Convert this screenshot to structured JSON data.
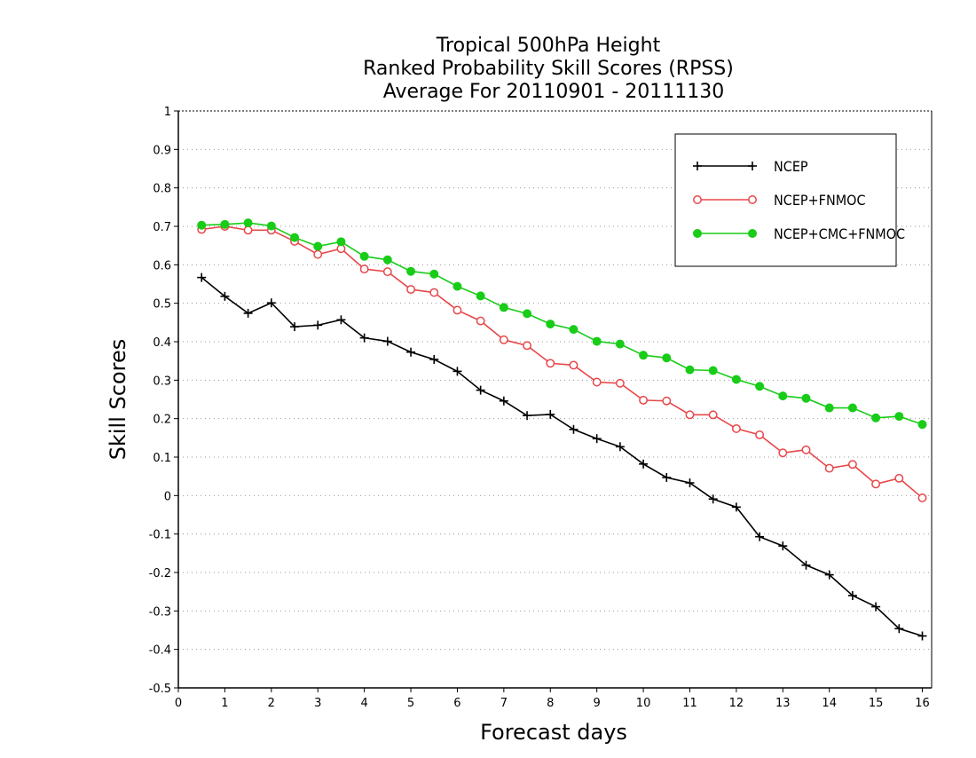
{
  "chart_data": {
    "type": "line",
    "title": [
      "Tropical 500hPa Height",
      "Ranked Probability Skill Scores (RPSS)",
      "Average For 20110901 - 20111130"
    ],
    "xlabel": "Forecast days",
    "ylabel": "Skill Scores",
    "xlim": [
      0,
      16.2
    ],
    "ylim": [
      -0.5,
      1
    ],
    "xticks": [
      "0",
      "1",
      "2",
      "3",
      "4",
      "5",
      "6",
      "7",
      "8",
      "9",
      "10",
      "11",
      "12",
      "13",
      "14",
      "15",
      "16"
    ],
    "yticks": [
      "1",
      "0.9",
      "0.8",
      "0.7",
      "0.6",
      "0.5",
      "0.4",
      "0.3",
      "0.2",
      "0.1",
      "0",
      "-0.1",
      "-0.2",
      "-0.3",
      "-0.4",
      "-0.5"
    ],
    "grid": "horizontal dotted",
    "legend_position": "top-right",
    "x": [
      0.5,
      1,
      1.5,
      2,
      2.5,
      3,
      3.5,
      4,
      4.5,
      5,
      5.5,
      6,
      6.5,
      7,
      7.5,
      8,
      8.5,
      9,
      9.5,
      10,
      10.5,
      11,
      11.5,
      12,
      12.5,
      13,
      13.5,
      14,
      14.5,
      15,
      15.5,
      16
    ],
    "series": [
      {
        "name": "NCEP",
        "color": "#000000",
        "marker": "plus",
        "values": [
          0.567,
          0.518,
          0.474,
          0.501,
          0.439,
          0.443,
          0.457,
          0.41,
          0.401,
          0.373,
          0.354,
          0.323,
          0.274,
          0.246,
          0.208,
          0.211,
          0.172,
          0.148,
          0.127,
          0.082,
          0.047,
          0.033,
          -0.009,
          -0.03,
          -0.107,
          -0.131,
          -0.181,
          -0.206,
          -0.26,
          -0.289,
          -0.346,
          -0.365
        ]
      },
      {
        "name": "NCEP+FNMOC",
        "color": "#e8474a",
        "marker": "open-circle",
        "values": [
          0.692,
          0.7,
          0.69,
          0.69,
          0.661,
          0.627,
          0.642,
          0.589,
          0.582,
          0.536,
          0.528,
          0.482,
          0.454,
          0.405,
          0.39,
          0.344,
          0.339,
          0.295,
          0.292,
          0.248,
          0.246,
          0.21,
          0.21,
          0.174,
          0.158,
          0.111,
          0.119,
          0.071,
          0.081,
          0.03,
          0.045,
          -0.006
        ]
      },
      {
        "name": "NCEP+CMC+FNMOC",
        "color": "#18cc18",
        "marker": "filled-circle",
        "values": [
          0.703,
          0.705,
          0.709,
          0.701,
          0.671,
          0.648,
          0.66,
          0.622,
          0.613,
          0.583,
          0.576,
          0.544,
          0.519,
          0.489,
          0.473,
          0.446,
          0.432,
          0.401,
          0.394,
          0.365,
          0.358,
          0.327,
          0.325,
          0.302,
          0.284,
          0.259,
          0.253,
          0.228,
          0.228,
          0.202,
          0.206,
          0.185
        ]
      }
    ]
  }
}
